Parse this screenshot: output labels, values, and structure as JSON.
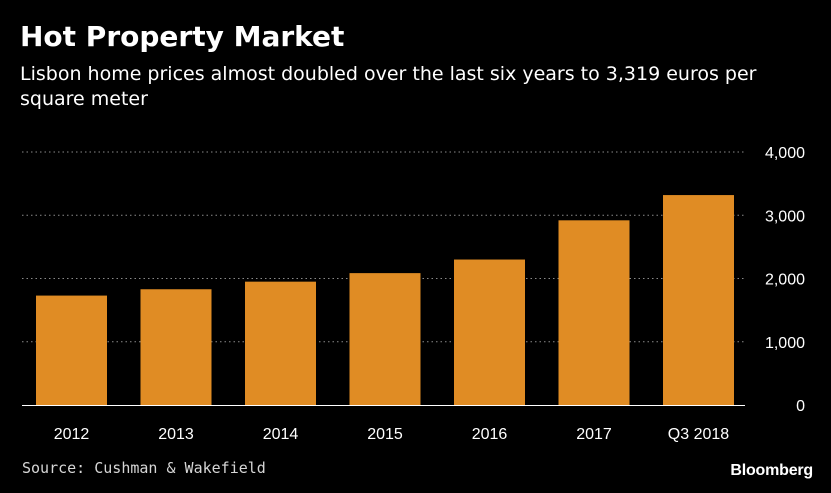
{
  "header": {
    "title": "Hot Property Market",
    "subtitle": "Lisbon home prices almost doubled over the last six years to 3,319 euros per square meter"
  },
  "footer": {
    "source": "Source: Cushman & Wakefield",
    "brand": "Bloomberg"
  },
  "colors": {
    "background": "#000000",
    "bar": "#e08c24",
    "grid": "#8a8a8a",
    "text": "#ffffff"
  },
  "chart_data": {
    "type": "bar",
    "categories": [
      "2012",
      "2013",
      "2014",
      "2015",
      "2016",
      "2017",
      "Q3 2018"
    ],
    "values": [
      1730,
      1830,
      1950,
      2085,
      2300,
      2920,
      3319
    ],
    "title": "Hot Property Market",
    "subtitle": "Lisbon home prices almost doubled over the last six years to 3,319 euros per square meter",
    "xlabel": "",
    "ylabel": "",
    "ylim": [
      0,
      4000
    ],
    "yticks": [
      0,
      1000,
      2000,
      3000,
      4000
    ],
    "ytick_labels": [
      "0",
      "1,000",
      "2,000",
      "3,000",
      "4,000"
    ],
    "y_axis_position": "right",
    "grid": true,
    "grid_style": "dotted",
    "legend": "none"
  }
}
